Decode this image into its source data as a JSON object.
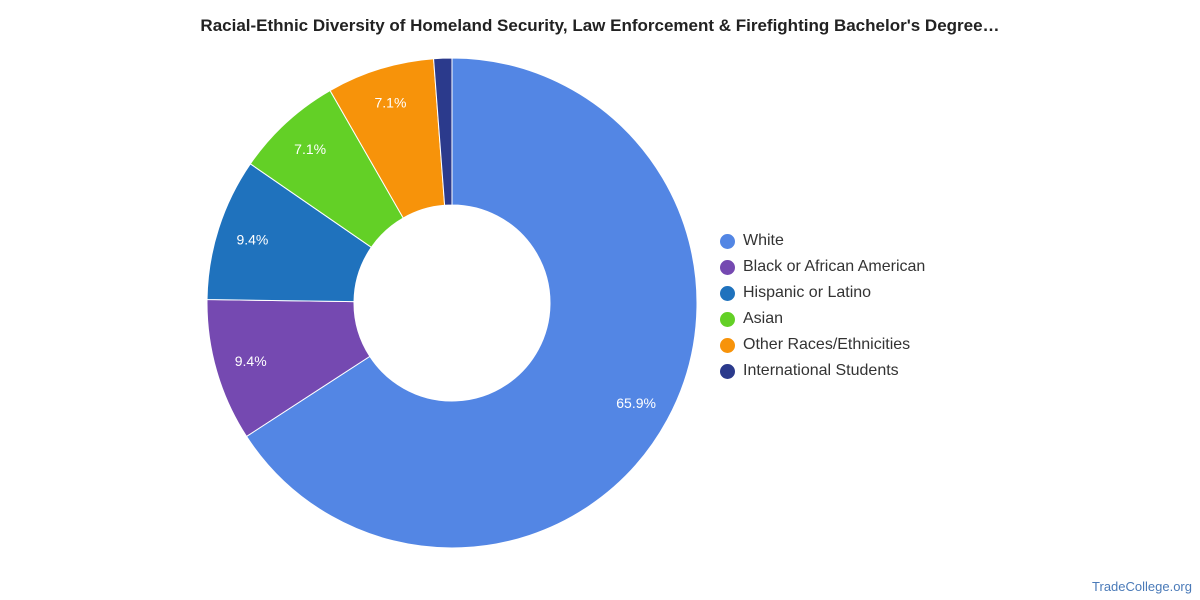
{
  "chart_data": {
    "type": "pie",
    "title": "Racial-Ethnic Diversity of Homeland Security, Law Enforcement & Firefighting Bachelor's Degree…",
    "donut": true,
    "legend_position": "right",
    "slices": [
      {
        "label": "White",
        "value": 65.9,
        "display": "65.9%",
        "color": "#5386e4"
      },
      {
        "label": "Black or African American",
        "value": 9.4,
        "display": "9.4%",
        "color": "#7549b1"
      },
      {
        "label": "Hispanic or Latino",
        "value": 9.4,
        "display": "9.4%",
        "color": "#1f72bd"
      },
      {
        "label": "Asian",
        "value": 7.1,
        "display": "7.1%",
        "color": "#63d026"
      },
      {
        "label": "Other Races/Ethnicities",
        "value": 7.1,
        "display": "7.1%",
        "color": "#f7930a"
      },
      {
        "label": "International Students",
        "value": 1.2,
        "display": "",
        "color": "#2b3a8c"
      }
    ]
  },
  "footer": {
    "source": "TradeCollege.org"
  }
}
